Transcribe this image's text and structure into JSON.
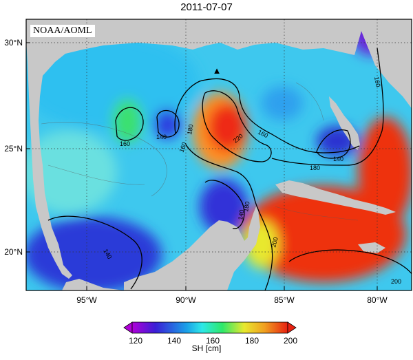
{
  "title": "2011-07-07",
  "credit": "NOAA/AOML",
  "lat_labels": [
    "30°N",
    "25°N",
    "20°N"
  ],
  "lon_labels": [
    "95°W",
    "90°W",
    "85°W",
    "80°W"
  ],
  "contour_labels": [
    "160",
    "140",
    "180",
    "160",
    "220",
    "160",
    "180",
    "140",
    "180",
    "140",
    "200",
    "200",
    "140",
    "160"
  ],
  "colorbar": {
    "ticks": [
      "120",
      "140",
      "160",
      "180",
      "200"
    ],
    "unit": "SH [cm]",
    "colors": [
      "#b000d8",
      "#3a1fd6",
      "#1aa0e8",
      "#2ee8e8",
      "#2ee86a",
      "#e8e82e",
      "#f0a020",
      "#e82010",
      "#e82010"
    ]
  },
  "colors": {
    "land": "#c8c8c8",
    "border": "#000000"
  },
  "markers": [
    {
      "name": "triangle",
      "symbol": "▲"
    }
  ]
}
